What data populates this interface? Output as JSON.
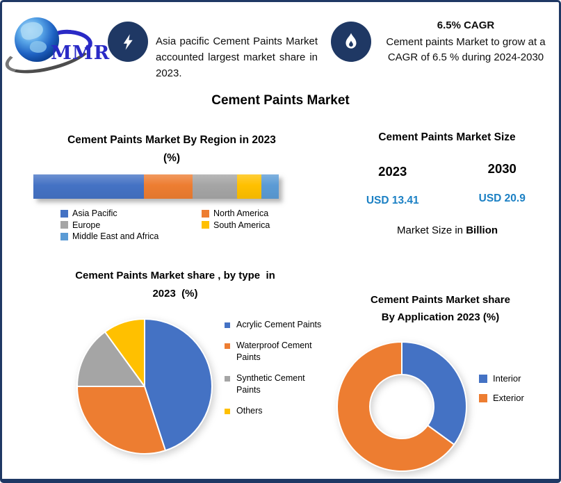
{
  "brand": {
    "logo_text": "MMR"
  },
  "header": {
    "highlight_share": {
      "icon": "lightning-icon",
      "text": "Asia pacific Cement Paints Market accounted largest market share in 2023."
    },
    "highlight_cagr": {
      "icon": "flame-icon",
      "title": "6.5% CAGR",
      "text": "Cement paints Market to grow at a CAGR of 6.5 % during 2024-2030"
    }
  },
  "page_title": "Cement Paints Market",
  "market_size": {
    "title": "Cement Paints Market Size",
    "columns": [
      {
        "year": "2023",
        "value": "USD 13.41"
      },
      {
        "year": "2030",
        "value": "USD 20.9"
      }
    ],
    "footnote_prefix": "Market Size in ",
    "footnote_bold": "Billion",
    "value_color": "#1b80c4"
  },
  "colors": {
    "navy": "#1f3864",
    "blue": "#4472c4",
    "orange": "#ed7d31",
    "gray": "#a5a5a5",
    "yellow": "#ffc000",
    "light_blue": "#5b9bd5"
  },
  "chart_data": [
    {
      "type": "bar",
      "variant": "stacked-horizontal",
      "title": "Cement Paints Market By Region in 2023 (%)",
      "title_lines": [
        "Cement Paints Market By Region in 2023",
        "(%)"
      ],
      "categories": [
        "Asia Pacific",
        "North America",
        "Europe",
        "South America",
        "Middle East and Africa"
      ],
      "values": [
        45,
        20,
        18,
        10,
        7
      ],
      "colors": [
        "#4472c4",
        "#ed7d31",
        "#a5a5a5",
        "#ffc000",
        "#5b9bd5"
      ],
      "unit": "%",
      "legend_position": "bottom"
    },
    {
      "type": "pie",
      "title": "Cement Paints Market share , by type in 2023 (%)",
      "title_lines": [
        "Cement Paints Market share , by type  in",
        "2023  (%)"
      ],
      "categories": [
        "Acrylic Cement Paints",
        "Waterproof Cement Paints",
        "Synthetic Cement Paints",
        "Others"
      ],
      "values": [
        45,
        30,
        15,
        10
      ],
      "colors": [
        "#4472c4",
        "#ed7d31",
        "#a5a5a5",
        "#ffc000"
      ],
      "unit": "%",
      "legend_position": "right"
    },
    {
      "type": "pie",
      "variant": "donut",
      "title": "Cement Paints Market share By Application 2023 (%)",
      "title_lines": [
        "Cement Paints Market share",
        "By Application 2023 (%)"
      ],
      "categories": [
        "Interior",
        "Exterior"
      ],
      "values": [
        35,
        65
      ],
      "colors": [
        "#4472c4",
        "#ed7d31"
      ],
      "unit": "%",
      "legend_position": "right"
    }
  ]
}
